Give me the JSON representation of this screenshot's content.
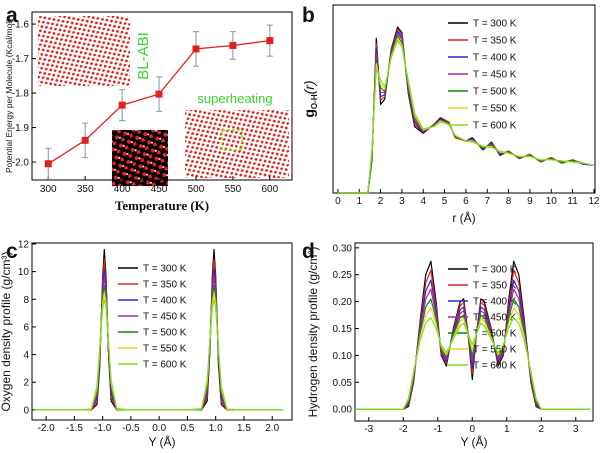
{
  "chart_data": [
    {
      "type": "line",
      "panel_label": "a",
      "xlabel": "Temperature (K)",
      "ylabel": "Potential Energy per Molecule (Kcal/mol)",
      "x": [
        300,
        350,
        400,
        450,
        500,
        550,
        600
      ],
      "values": [
        -2.005,
        -1.937,
        -1.835,
        -1.803,
        -1.672,
        -1.662,
        -1.648
      ],
      "errors": [
        0.045,
        0.05,
        0.045,
        0.05,
        0.05,
        0.04,
        0.045
      ],
      "color": "#e0201b",
      "error_color": "#7f93b8",
      "marker": "square",
      "xlim": [
        278,
        630
      ],
      "ylim": [
        -2.052,
        -1.565
      ],
      "xticks": [
        300,
        350,
        400,
        450,
        500,
        550,
        600
      ],
      "yticks": [
        {
          "value": -2,
          "label": "-2.0"
        },
        -1.9,
        -1.8,
        -1.7,
        -1.6
      ],
      "annotations": [
        "BL-ABI",
        "superheating"
      ]
    },
    {
      "type": "line",
      "panel_label": "b",
      "xlabel": "r (Å)",
      "ylabel": {
        "main": "g",
        "sub": "O-H",
        "tail": "(r)"
      },
      "x": [
        0,
        1,
        1.4,
        1.6,
        1.8,
        2.0,
        2.2,
        2.5,
        2.8,
        3.0,
        3.3,
        3.6,
        4,
        4.5,
        4.8,
        5.2,
        5.5,
        6,
        6.3,
        6.8,
        7.2,
        7.6,
        8,
        8.5,
        9,
        9.5,
        10,
        10.5,
        11,
        11.5,
        12
      ],
      "series": [
        {
          "name": "T = 300 K",
          "color": "#000000",
          "values": [
            0,
            0,
            0,
            3,
            14,
            8,
            8.5,
            13,
            15,
            14.5,
            9,
            6,
            5.4,
            6.2,
            6.8,
            6.4,
            5,
            4.7,
            5,
            3.9,
            4.6,
            3.4,
            3.8,
            3.1,
            3.5,
            2.8,
            3.2,
            2.7,
            3,
            2.6,
            2.5
          ]
        },
        {
          "name": "T = 350 K",
          "color": "#e0201b",
          "values": [
            0,
            0,
            0,
            3.2,
            13.5,
            8.4,
            8.7,
            12.9,
            14.8,
            14.3,
            9.2,
            6.2,
            5.5,
            6.2,
            6.7,
            6.4,
            5,
            4.7,
            4.9,
            4,
            4.5,
            3.5,
            3.8,
            3.1,
            3.5,
            2.8,
            3.2,
            2.7,
            3,
            2.6,
            2.5
          ]
        },
        {
          "name": "T = 400 K",
          "color": "#2a2ac8",
          "values": [
            0,
            0,
            0,
            3.3,
            13.1,
            8.7,
            8.9,
            12.7,
            14.6,
            14.1,
            9.4,
            6.4,
            5.5,
            6.1,
            6.7,
            6.3,
            5.1,
            4.7,
            4.9,
            4,
            4.4,
            3.5,
            3.7,
            3.2,
            3.4,
            2.9,
            3.1,
            2.8,
            2.9,
            2.6,
            2.5
          ]
        },
        {
          "name": "T = 450 K",
          "color": "#b0239a",
          "values": [
            0,
            0,
            0,
            3.5,
            12.6,
            9.1,
            9.1,
            12.6,
            14.4,
            13.9,
            9.6,
            6.6,
            5.6,
            6.1,
            6.6,
            6.3,
            5.1,
            4.7,
            4.8,
            4.1,
            4.4,
            3.6,
            3.7,
            3.2,
            3.4,
            2.9,
            3.1,
            2.8,
            2.9,
            2.7,
            2.5
          ]
        },
        {
          "name": "T = 500 K",
          "color": "#0a8c0a",
          "values": [
            0,
            0,
            0,
            3.7,
            12.1,
            9.5,
            9.2,
            12.5,
            14.2,
            13.6,
            9.8,
            6.8,
            5.7,
            6.1,
            6.5,
            6.3,
            5.1,
            4.7,
            4.7,
            4.1,
            4.3,
            3.7,
            3.7,
            3.2,
            3.4,
            2.9,
            3.1,
            2.8,
            2.9,
            2.7,
            2.5
          ]
        },
        {
          "name": "T = 550 K",
          "color": "#e6d619",
          "values": [
            0,
            0,
            0,
            3.8,
            11.7,
            9.8,
            9.4,
            12.3,
            14,
            13.4,
            10,
            7,
            5.7,
            6,
            6.5,
            6.2,
            5.2,
            4.7,
            4.7,
            4.2,
            4.2,
            3.7,
            3.6,
            3.3,
            3.3,
            3,
            3,
            2.9,
            2.8,
            2.7,
            2.5
          ]
        },
        {
          "name": "T = 600 K",
          "color": "#7ee11e",
          "values": [
            0,
            0,
            0,
            4,
            11.2,
            10.2,
            9.6,
            12.2,
            13.8,
            13.2,
            10.2,
            7.2,
            5.8,
            6,
            6.4,
            6.2,
            5.2,
            4.7,
            4.6,
            4.2,
            4.1,
            3.8,
            3.6,
            3.3,
            3.3,
            3,
            3,
            2.9,
            2.8,
            2.7,
            2.5
          ]
        }
      ],
      "xlim": [
        -0.23,
        12.05
      ],
      "ylim": [
        0,
        17
      ],
      "xticks": [
        0,
        1,
        2,
        3,
        4,
        5,
        6,
        7,
        8,
        9,
        10,
        11,
        12
      ]
    },
    {
      "type": "line",
      "panel_label": "c",
      "xlabel": "Y (Å)",
      "ylabel": "Oxygen density profile (g/cm³)",
      "x": [
        -2.2,
        -1.4,
        -1.2,
        -1.1,
        -1.05,
        -1.0,
        -0.97,
        -0.94,
        -0.9,
        -0.85,
        -0.75,
        -0.5,
        0,
        0.5,
        0.75,
        0.85,
        0.9,
        0.94,
        0.97,
        1.0,
        1.05,
        1.1,
        1.2,
        1.4,
        2.2
      ],
      "series": [
        {
          "name": "T = 300 K",
          "color": "#000000",
          "values": [
            0,
            0,
            0,
            0.39,
            3.22,
            9.69,
            11.6,
            9.69,
            4.35,
            0.65,
            0,
            0,
            0,
            0,
            0,
            0.65,
            4.35,
            9.69,
            11.6,
            9.69,
            3.22,
            0.39,
            0,
            0,
            0
          ]
        },
        {
          "name": "T = 350 K",
          "color": "#e0201b",
          "values": [
            0,
            0,
            0,
            0.6,
            3.64,
            9.34,
            10.9,
            9.34,
            4.71,
            0.92,
            0,
            0,
            0,
            0,
            0,
            0.92,
            4.71,
            9.34,
            10.9,
            9.34,
            3.64,
            0.6,
            0,
            0,
            0
          ]
        },
        {
          "name": "T = 400 K",
          "color": "#2a2ac8",
          "values": [
            0,
            0,
            0,
            0.83,
            3.94,
            8.92,
            10.2,
            8.92,
            4.93,
            1.2,
            0,
            0,
            0,
            0,
            0,
            1.2,
            4.93,
            8.92,
            10.2,
            8.92,
            3.94,
            0.83,
            0,
            0,
            0
          ]
        },
        {
          "name": "T = 450 K",
          "color": "#b0239a",
          "values": [
            0,
            0,
            0.01,
            1.07,
            4.17,
            8.54,
            9.6,
            8.54,
            5.08,
            1.48,
            0.02,
            0,
            0,
            0,
            0.02,
            1.48,
            5.08,
            8.54,
            9.6,
            8.54,
            4.17,
            1.07,
            0.01,
            0,
            0
          ]
        },
        {
          "name": "T = 500 K",
          "color": "#0a8c0a",
          "values": [
            0,
            0,
            0.02,
            1.29,
            4.32,
            8.12,
            9.0,
            8.12,
            5.13,
            1.73,
            0.03,
            0,
            0,
            0,
            0.03,
            1.73,
            5.13,
            8.12,
            9.0,
            8.12,
            4.32,
            1.29,
            0.02,
            0,
            0
          ]
        },
        {
          "name": "T = 550 K",
          "color": "#e6d619",
          "values": [
            0,
            0,
            0.04,
            1.52,
            4.42,
            7.75,
            8.5,
            7.75,
            5.16,
            1.96,
            0.06,
            0,
            0,
            0,
            0.06,
            1.96,
            5.16,
            7.75,
            8.5,
            7.75,
            4.42,
            1.52,
            0.04,
            0,
            0
          ]
        },
        {
          "name": "T = 600 K",
          "color": "#7ee11e",
          "values": [
            0,
            0,
            0.08,
            1.71,
            4.46,
            7.37,
            8.0,
            7.37,
            5.11,
            2.15,
            0.1,
            0,
            0,
            0,
            0.1,
            2.15,
            5.11,
            7.37,
            8.0,
            7.37,
            4.46,
            1.71,
            0.08,
            0,
            0
          ]
        }
      ],
      "xlim": [
        -2.25,
        2.35
      ],
      "ylim": [
        -0.73,
        12.07
      ],
      "xticks": [
        {
          "value": -2,
          "label": "-2.0"
        },
        -1.5,
        {
          "value": -1,
          "label": "-1.0"
        },
        -0.5,
        {
          "value": 0,
          "label": "0.0"
        },
        0.5,
        {
          "value": 1,
          "label": "1.0"
        },
        1.5,
        {
          "value": 2,
          "label": "2.0"
        }
      ],
      "yticks": [
        0,
        2,
        4,
        6,
        8,
        10,
        12
      ]
    },
    {
      "type": "line",
      "panel_label": "d",
      "xlabel": "Y (Å)",
      "ylabel": "Hydrogen density profile (g/cm³)",
      "x": [
        -3.4,
        -2.0,
        -1.85,
        -1.7,
        -1.5,
        -1.35,
        -1.2,
        -1.05,
        -0.9,
        -0.75,
        -0.55,
        -0.35,
        -0.25,
        -0.12,
        0,
        0.12,
        0.25,
        0.35,
        0.55,
        0.75,
        0.9,
        1.05,
        1.2,
        1.35,
        1.5,
        1.7,
        1.85,
        2.0,
        3.4
      ],
      "series": [
        {
          "name": "T = 300 K",
          "color": "#000000",
          "values": [
            0,
            0,
            0.005,
            0.05,
            0.17,
            0.25,
            0.275,
            0.2,
            0.1,
            0.08,
            0.15,
            0.2,
            0.205,
            0.14,
            0.055,
            0.14,
            0.205,
            0.2,
            0.15,
            0.08,
            0.1,
            0.2,
            0.275,
            0.25,
            0.17,
            0.05,
            0.005,
            0,
            0
          ]
        },
        {
          "name": "T = 350 K",
          "color": "#e0201b",
          "values": [
            0,
            0,
            0.008,
            0.053,
            0.163,
            0.235,
            0.258,
            0.192,
            0.103,
            0.084,
            0.147,
            0.193,
            0.198,
            0.14,
            0.066,
            0.14,
            0.198,
            0.193,
            0.147,
            0.084,
            0.103,
            0.192,
            0.258,
            0.235,
            0.163,
            0.053,
            0.008,
            0,
            0
          ]
        },
        {
          "name": "T = 400 K",
          "color": "#2a2ac8",
          "values": [
            0,
            0,
            0.01,
            0.057,
            0.157,
            0.22,
            0.24,
            0.183,
            0.107,
            0.088,
            0.143,
            0.185,
            0.19,
            0.14,
            0.077,
            0.14,
            0.19,
            0.185,
            0.143,
            0.088,
            0.107,
            0.183,
            0.24,
            0.22,
            0.157,
            0.057,
            0.01,
            0,
            0
          ]
        },
        {
          "name": "T = 450 K",
          "color": "#b0239a",
          "values": [
            0,
            0,
            0.013,
            0.06,
            0.15,
            0.205,
            0.223,
            0.175,
            0.11,
            0.093,
            0.14,
            0.178,
            0.183,
            0.14,
            0.088,
            0.14,
            0.183,
            0.178,
            0.14,
            0.093,
            0.11,
            0.175,
            0.223,
            0.205,
            0.15,
            0.06,
            0.013,
            0,
            0
          ]
        },
        {
          "name": "T = 500 K",
          "color": "#0a8c0a",
          "values": [
            0,
            0,
            0.015,
            0.063,
            0.143,
            0.19,
            0.205,
            0.167,
            0.113,
            0.097,
            0.137,
            0.17,
            0.175,
            0.14,
            0.098,
            0.14,
            0.175,
            0.17,
            0.137,
            0.097,
            0.113,
            0.167,
            0.205,
            0.19,
            0.143,
            0.063,
            0.015,
            0,
            0
          ]
        },
        {
          "name": "T = 550 K",
          "color": "#e6d619",
          "values": [
            0,
            0,
            0.018,
            0.067,
            0.137,
            0.175,
            0.188,
            0.158,
            0.117,
            0.101,
            0.133,
            0.163,
            0.168,
            0.14,
            0.109,
            0.14,
            0.168,
            0.163,
            0.133,
            0.101,
            0.117,
            0.158,
            0.188,
            0.175,
            0.137,
            0.067,
            0.018,
            0,
            0
          ]
        },
        {
          "name": "T = 600 K",
          "color": "#7ee11e",
          "values": [
            0,
            0,
            0.02,
            0.07,
            0.13,
            0.16,
            0.17,
            0.15,
            0.12,
            0.105,
            0.13,
            0.155,
            0.16,
            0.14,
            0.12,
            0.14,
            0.16,
            0.155,
            0.13,
            0.105,
            0.12,
            0.15,
            0.17,
            0.16,
            0.13,
            0.07,
            0.02,
            0,
            0
          ]
        }
      ],
      "xlim": [
        -3.4,
        3.5
      ],
      "ylim": [
        -0.022,
        0.309
      ],
      "xticks": [
        -3,
        -2,
        -1,
        0,
        1,
        2,
        3
      ],
      "yticks": [
        {
          "value": 0,
          "label": "0.00"
        },
        0.05,
        {
          "value": 0.1,
          "label": "0.10"
        },
        0.15,
        {
          "value": 0.2,
          "label": "0.20"
        },
        0.25,
        {
          "value": 0.3,
          "label": "0.30"
        }
      ]
    }
  ]
}
